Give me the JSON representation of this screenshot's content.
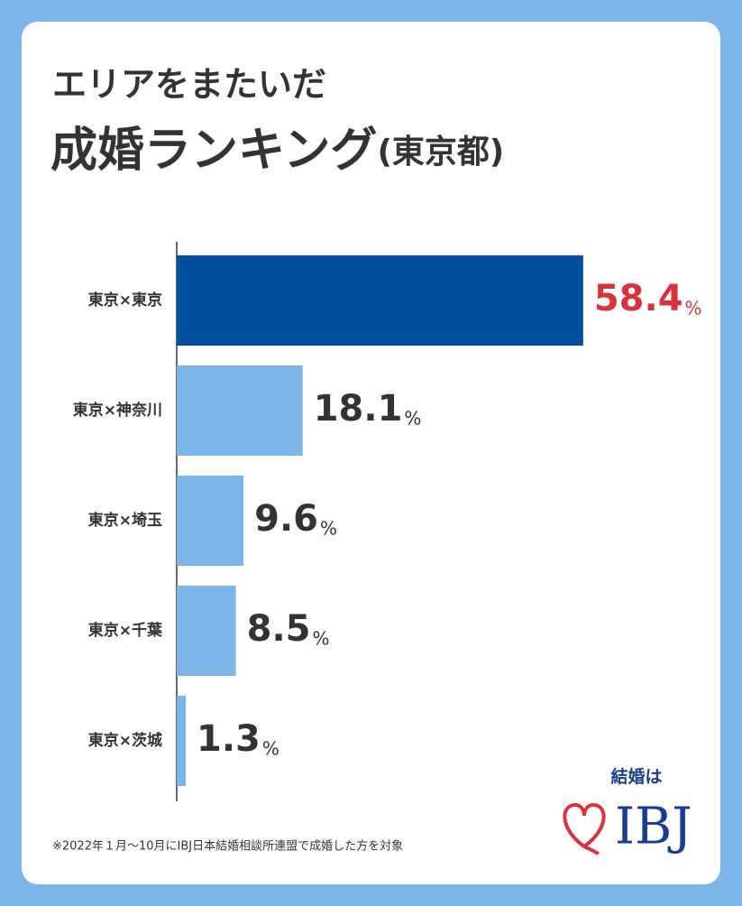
{
  "chart_data": {
    "type": "hbar",
    "title": "エリアをまたいだ",
    "subtitle": [
      "成婚ランキング",
      "(東京都)"
    ],
    "categories": [
      "東京×東京",
      "東京×神奈川",
      "東京×埼玉",
      "東京×千葉",
      "東京×茨城"
    ],
    "values": [
      58.4,
      18.1,
      9.6,
      8.5,
      1.3
    ],
    "value_unit": "%",
    "colors": [
      "#0050a0",
      "#7cb5e8",
      "#7cb5e8",
      "#7cb5e8",
      "#7cb5e8"
    ],
    "label_colors": [
      "#d9323a",
      "#333333",
      "#333333",
      "#333333",
      "#333333"
    ],
    "footnote": "※2022年１月〜10月にIBJ日本結婚相談所連盟で成婚した方を対象",
    "logo": {
      "tagline": "結婚は",
      "name": "IBJ"
    }
  }
}
